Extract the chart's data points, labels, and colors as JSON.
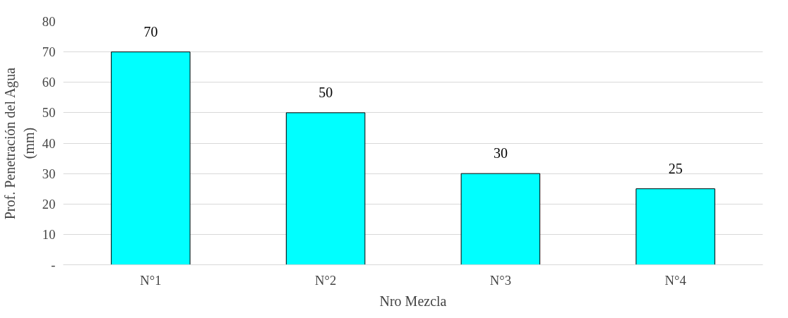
{
  "chart_data": {
    "type": "bar",
    "xlabel": "Nro Mezcla",
    "ylabel": "Prof. Penetración del Agua\n(mm)",
    "categories": [
      "N°1",
      "N°2",
      "N°3",
      "N°4"
    ],
    "values": [
      70,
      50,
      30,
      25
    ],
    "color": "#00ffff",
    "ylim": [
      0,
      80
    ],
    "yticks": [
      {
        "value": 0,
        "label": "-"
      },
      10,
      20,
      30,
      40,
      50,
      60,
      70,
      80
    ],
    "grid": "y",
    "data_labels": true
  }
}
